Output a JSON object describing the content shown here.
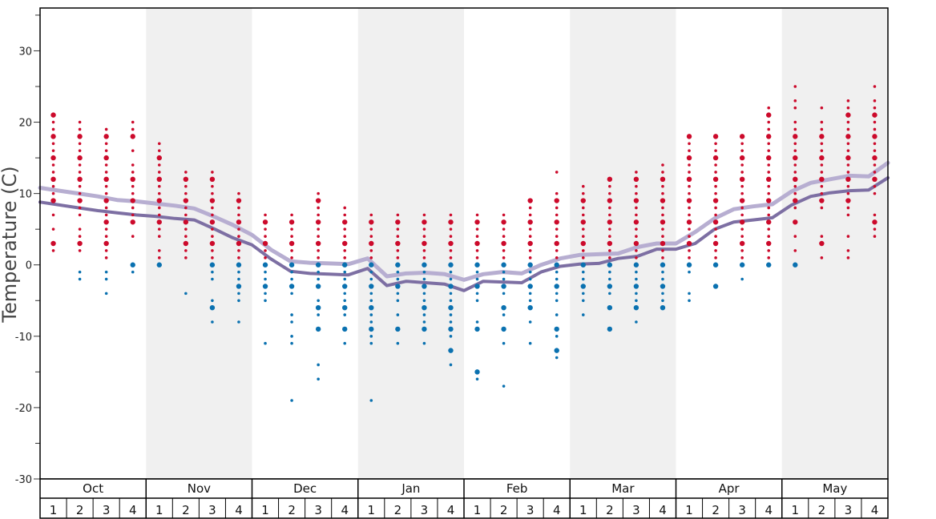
{
  "chart_data": {
    "type": "scatter",
    "title": "",
    "ylabel": "Temperature (C)",
    "xlabel": "",
    "ylim": [
      -30,
      36
    ],
    "yticks": [
      -30,
      -20,
      -10,
      0,
      10,
      20,
      30
    ],
    "ytick_labels": [
      "-30",
      "-20",
      "-10",
      "0",
      "10",
      "20",
      "30"
    ],
    "months": [
      "Oct",
      "Nov",
      "Dec",
      "Jan",
      "Feb",
      "Mar",
      "Apr",
      "May"
    ],
    "weeks": [
      "1",
      "2",
      "3",
      "4"
    ],
    "shaded_months": [
      "Nov",
      "Jan",
      "Mar",
      "May"
    ],
    "colors": {
      "warm_points": "#cc0a2b",
      "cold_points": "#0a71b0",
      "upper_line": "#b7aed1",
      "lower_line": "#7d6fa3",
      "shade": "#f0f0f0",
      "frame": "#000000"
    },
    "series": [
      {
        "kind": "line",
        "style": "upper",
        "x": [
          0,
          1,
          2,
          3,
          4,
          5,
          6,
          7,
          8,
          9,
          10,
          11,
          12,
          13,
          14,
          15,
          16,
          17,
          18,
          19,
          20,
          21,
          22,
          23,
          24,
          25,
          26,
          27,
          28,
          29,
          30,
          31,
          32
        ],
        "values": [
          10.8,
          10.4,
          10.0,
          9.6,
          9.1,
          8.9,
          8.6,
          8.3,
          7.9,
          6.8,
          5.6,
          4.2,
          2.1,
          0.5,
          0.3,
          0.2,
          0.1,
          0.9,
          -1.6,
          -1.2,
          -1.1,
          -1.3,
          -2.1,
          -1.3,
          -1.0,
          -1.2,
          0.0,
          0.9,
          1.4,
          1.5,
          1.6,
          2.5,
          3.0
        ]
      },
      {
        "kind": "line",
        "style": "lower",
        "x": [
          0,
          1,
          2,
          3,
          4,
          5,
          6,
          7,
          8,
          9,
          10,
          11,
          12,
          13,
          14,
          15,
          16,
          17,
          18,
          19,
          20,
          21,
          22,
          23,
          24,
          25,
          26,
          27,
          28,
          29,
          30,
          31,
          32
        ],
        "values": [
          8.8,
          8.4,
          8.0,
          7.6,
          7.3,
          7.0,
          6.8,
          6.5,
          6.3,
          5.1,
          3.8,
          2.8,
          0.8,
          -0.9,
          -1.2,
          -1.3,
          -1.4,
          -0.5,
          -2.9,
          -2.3,
          -2.5,
          -2.7,
          -3.6,
          -2.3,
          -2.4,
          -2.5,
          -1.0,
          -0.2,
          0.1,
          0.2,
          0.9,
          1.2,
          2.2
        ]
      }
    ],
    "extra_upper": [
      3.0,
      4.6,
      6.5,
      7.8,
      8.2,
      8.5,
      10.3,
      11.5,
      12.0,
      12.5,
      12.4,
      14.3
    ],
    "extra_lower": [
      2.2,
      3.0,
      5.0,
      6.0,
      6.3,
      6.6,
      8.4,
      9.6,
      10.1,
      10.4,
      10.5,
      12.2
    ],
    "cold_dots": [
      [],
      [
        -1,
        -2
      ],
      [
        -1,
        -2,
        -4
      ],
      [
        0,
        -1
      ],
      [
        0
      ],
      [
        -4
      ],
      [
        0,
        -1,
        -2,
        -5,
        -6,
        -8
      ],
      [
        0,
        -1,
        -2,
        -3,
        -4,
        -5,
        -8
      ],
      [
        0,
        -1,
        -2,
        -3,
        -4,
        -5,
        -11
      ],
      [
        0,
        -1,
        -2,
        -3,
        -4,
        -7,
        -8,
        -10,
        -11,
        -19
      ],
      [
        0,
        -1,
        -2,
        -3,
        -5,
        -6,
        -7,
        -9,
        -14,
        -16
      ],
      [
        0,
        -1,
        -2,
        -3,
        -4,
        -5,
        -6,
        -7,
        -9,
        -11
      ],
      [
        0,
        -1,
        -2,
        -3,
        -4,
        -5,
        -6,
        -7,
        -8,
        -9,
        -10,
        -11,
        -19
      ],
      [
        0,
        -1,
        -2,
        -3,
        -4,
        -5,
        -7,
        -9,
        -11
      ],
      [
        0,
        -1,
        -2,
        -3,
        -4,
        -5,
        -6,
        -7,
        -8,
        -9,
        -11
      ],
      [
        0,
        -1,
        -2,
        -3,
        -4,
        -5,
        -6,
        -7,
        -8,
        -9,
        -10,
        -12,
        -14
      ],
      [
        0,
        -1,
        -2,
        -3,
        -4,
        -5,
        -8,
        -9,
        -15,
        -16
      ],
      [
        0,
        -1,
        -2,
        -3,
        -4,
        -6,
        -7,
        -9,
        -11,
        -17
      ],
      [
        0,
        -1,
        -2,
        -3,
        -4,
        -5,
        -6,
        -8,
        -11
      ],
      [
        0,
        -1,
        -2,
        -3,
        -4,
        -5,
        -7,
        -9,
        -10,
        -12,
        -13
      ],
      [
        0,
        -1,
        -2,
        -3,
        -4,
        -5,
        -7
      ],
      [
        0,
        -1,
        -2,
        -3,
        -4,
        -6,
        -9
      ],
      [
        0,
        -1,
        -2,
        -3,
        -4,
        -5,
        -6,
        -8
      ],
      [
        0,
        -1,
        -2,
        -3,
        -4,
        -5,
        -6
      ],
      [
        0,
        -1,
        -4,
        -5
      ],
      [
        0,
        -3
      ],
      [
        0,
        -2
      ],
      [
        0
      ],
      [
        0
      ],
      [],
      [],
      []
    ],
    "warm_dots": [
      [
        2,
        3,
        5,
        7,
        9,
        10,
        11,
        12,
        13,
        14,
        15,
        16,
        17,
        18,
        19,
        20,
        21
      ],
      [
        2,
        3,
        4,
        5,
        7,
        8,
        9,
        10,
        11,
        12,
        13,
        14,
        15,
        16,
        17,
        18,
        19,
        20
      ],
      [
        1,
        2,
        3,
        4,
        5,
        6,
        7,
        8,
        9,
        10,
        11,
        12,
        13,
        14,
        15,
        16,
        17,
        18,
        19
      ],
      [
        4,
        6,
        7,
        8,
        9,
        10,
        11,
        12,
        13,
        14,
        16,
        18,
        19,
        20
      ],
      [
        1,
        2,
        4,
        5,
        6,
        7,
        8,
        9,
        10,
        11,
        12,
        13,
        14,
        15,
        16,
        17
      ],
      [
        1,
        2,
        3,
        4,
        5,
        6,
        7,
        8,
        9,
        10,
        11,
        12,
        13
      ],
      [
        1,
        2,
        3,
        4,
        5,
        6,
        7,
        8,
        9,
        10,
        11,
        12,
        13
      ],
      [
        1,
        2,
        3,
        4,
        5,
        6,
        7,
        8,
        9,
        10
      ],
      [
        1,
        2,
        3,
        4,
        5,
        6,
        7
      ],
      [
        1,
        2,
        3,
        4,
        5,
        6,
        7
      ],
      [
        1,
        2,
        3,
        4,
        5,
        6,
        7,
        8,
        9,
        10
      ],
      [
        1,
        2,
        3,
        4,
        5,
        6,
        7,
        8
      ],
      [
        1,
        2,
        3,
        4,
        5,
        6,
        7
      ],
      [
        1,
        2,
        3,
        4,
        5,
        6,
        7
      ],
      [
        1,
        2,
        3,
        4,
        5,
        6,
        7
      ],
      [
        1,
        2,
        3,
        4,
        5,
        6,
        7
      ],
      [
        1,
        2,
        3,
        4,
        5,
        6,
        7
      ],
      [
        1,
        2,
        3,
        4,
        5,
        6,
        7
      ],
      [
        1,
        2,
        3,
        4,
        5,
        6,
        7,
        8,
        9
      ],
      [
        1,
        2,
        3,
        4,
        5,
        6,
        7,
        8,
        9,
        10,
        13
      ],
      [
        1,
        2,
        3,
        4,
        5,
        6,
        7,
        8,
        9,
        10,
        11
      ],
      [
        1,
        2,
        3,
        4,
        5,
        6,
        7,
        8,
        9,
        10,
        11,
        12
      ],
      [
        1,
        2,
        3,
        4,
        5,
        6,
        7,
        8,
        9,
        10,
        11,
        12,
        13
      ],
      [
        1,
        2,
        3,
        4,
        5,
        6,
        7,
        8,
        9,
        10,
        11,
        12,
        13,
        14
      ],
      [
        1,
        2,
        3,
        4,
        5,
        6,
        7,
        8,
        9,
        10,
        11,
        12,
        13,
        14,
        15,
        16,
        17,
        18
      ],
      [
        1,
        2,
        3,
        4,
        5,
        6,
        7,
        8,
        9,
        10,
        11,
        12,
        13,
        14,
        15,
        16,
        17,
        18
      ],
      [
        1,
        2,
        3,
        4,
        5,
        6,
        7,
        8,
        9,
        10,
        11,
        12,
        13,
        14,
        15,
        16,
        17,
        18
      ],
      [
        1,
        2,
        3,
        4,
        5,
        6,
        7,
        8,
        9,
        10,
        11,
        12,
        13,
        14,
        15,
        16,
        17,
        18,
        19,
        20,
        21,
        22
      ],
      [
        2,
        4,
        6,
        8,
        9,
        10,
        11,
        12,
        13,
        14,
        15,
        16,
        17,
        18,
        19,
        20,
        22,
        23,
        25
      ],
      [
        1,
        3,
        4,
        8,
        9,
        10,
        11,
        12,
        13,
        14,
        15,
        16,
        17,
        18,
        19,
        20,
        22
      ],
      [
        1,
        2,
        4,
        7,
        8,
        9,
        10,
        11,
        12,
        13,
        14,
        15,
        16,
        17,
        18,
        19,
        20,
        21,
        22,
        23
      ],
      [
        4,
        5,
        6,
        7,
        10,
        11,
        12,
        13,
        14,
        15,
        16,
        17,
        18,
        19,
        20,
        21,
        22,
        23,
        25
      ]
    ]
  }
}
